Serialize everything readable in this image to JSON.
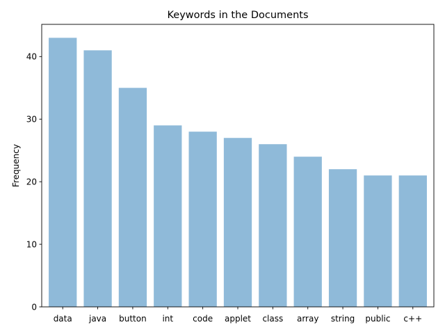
{
  "chart_data": {
    "type": "bar",
    "title": "Keywords in the Documents",
    "xlabel": "",
    "ylabel": "Frequency",
    "categories": [
      "data",
      "java",
      "button",
      "int",
      "code",
      "applet",
      "class",
      "array",
      "string",
      "public",
      "c++"
    ],
    "values": [
      43,
      41,
      35,
      29,
      28,
      27,
      26,
      24,
      22,
      21,
      21
    ],
    "ylim": [
      0,
      45.15
    ],
    "yticks": [
      0,
      10,
      20,
      30,
      40
    ],
    "bar_color": "#8fbad9",
    "grid": false,
    "legend": "none"
  }
}
